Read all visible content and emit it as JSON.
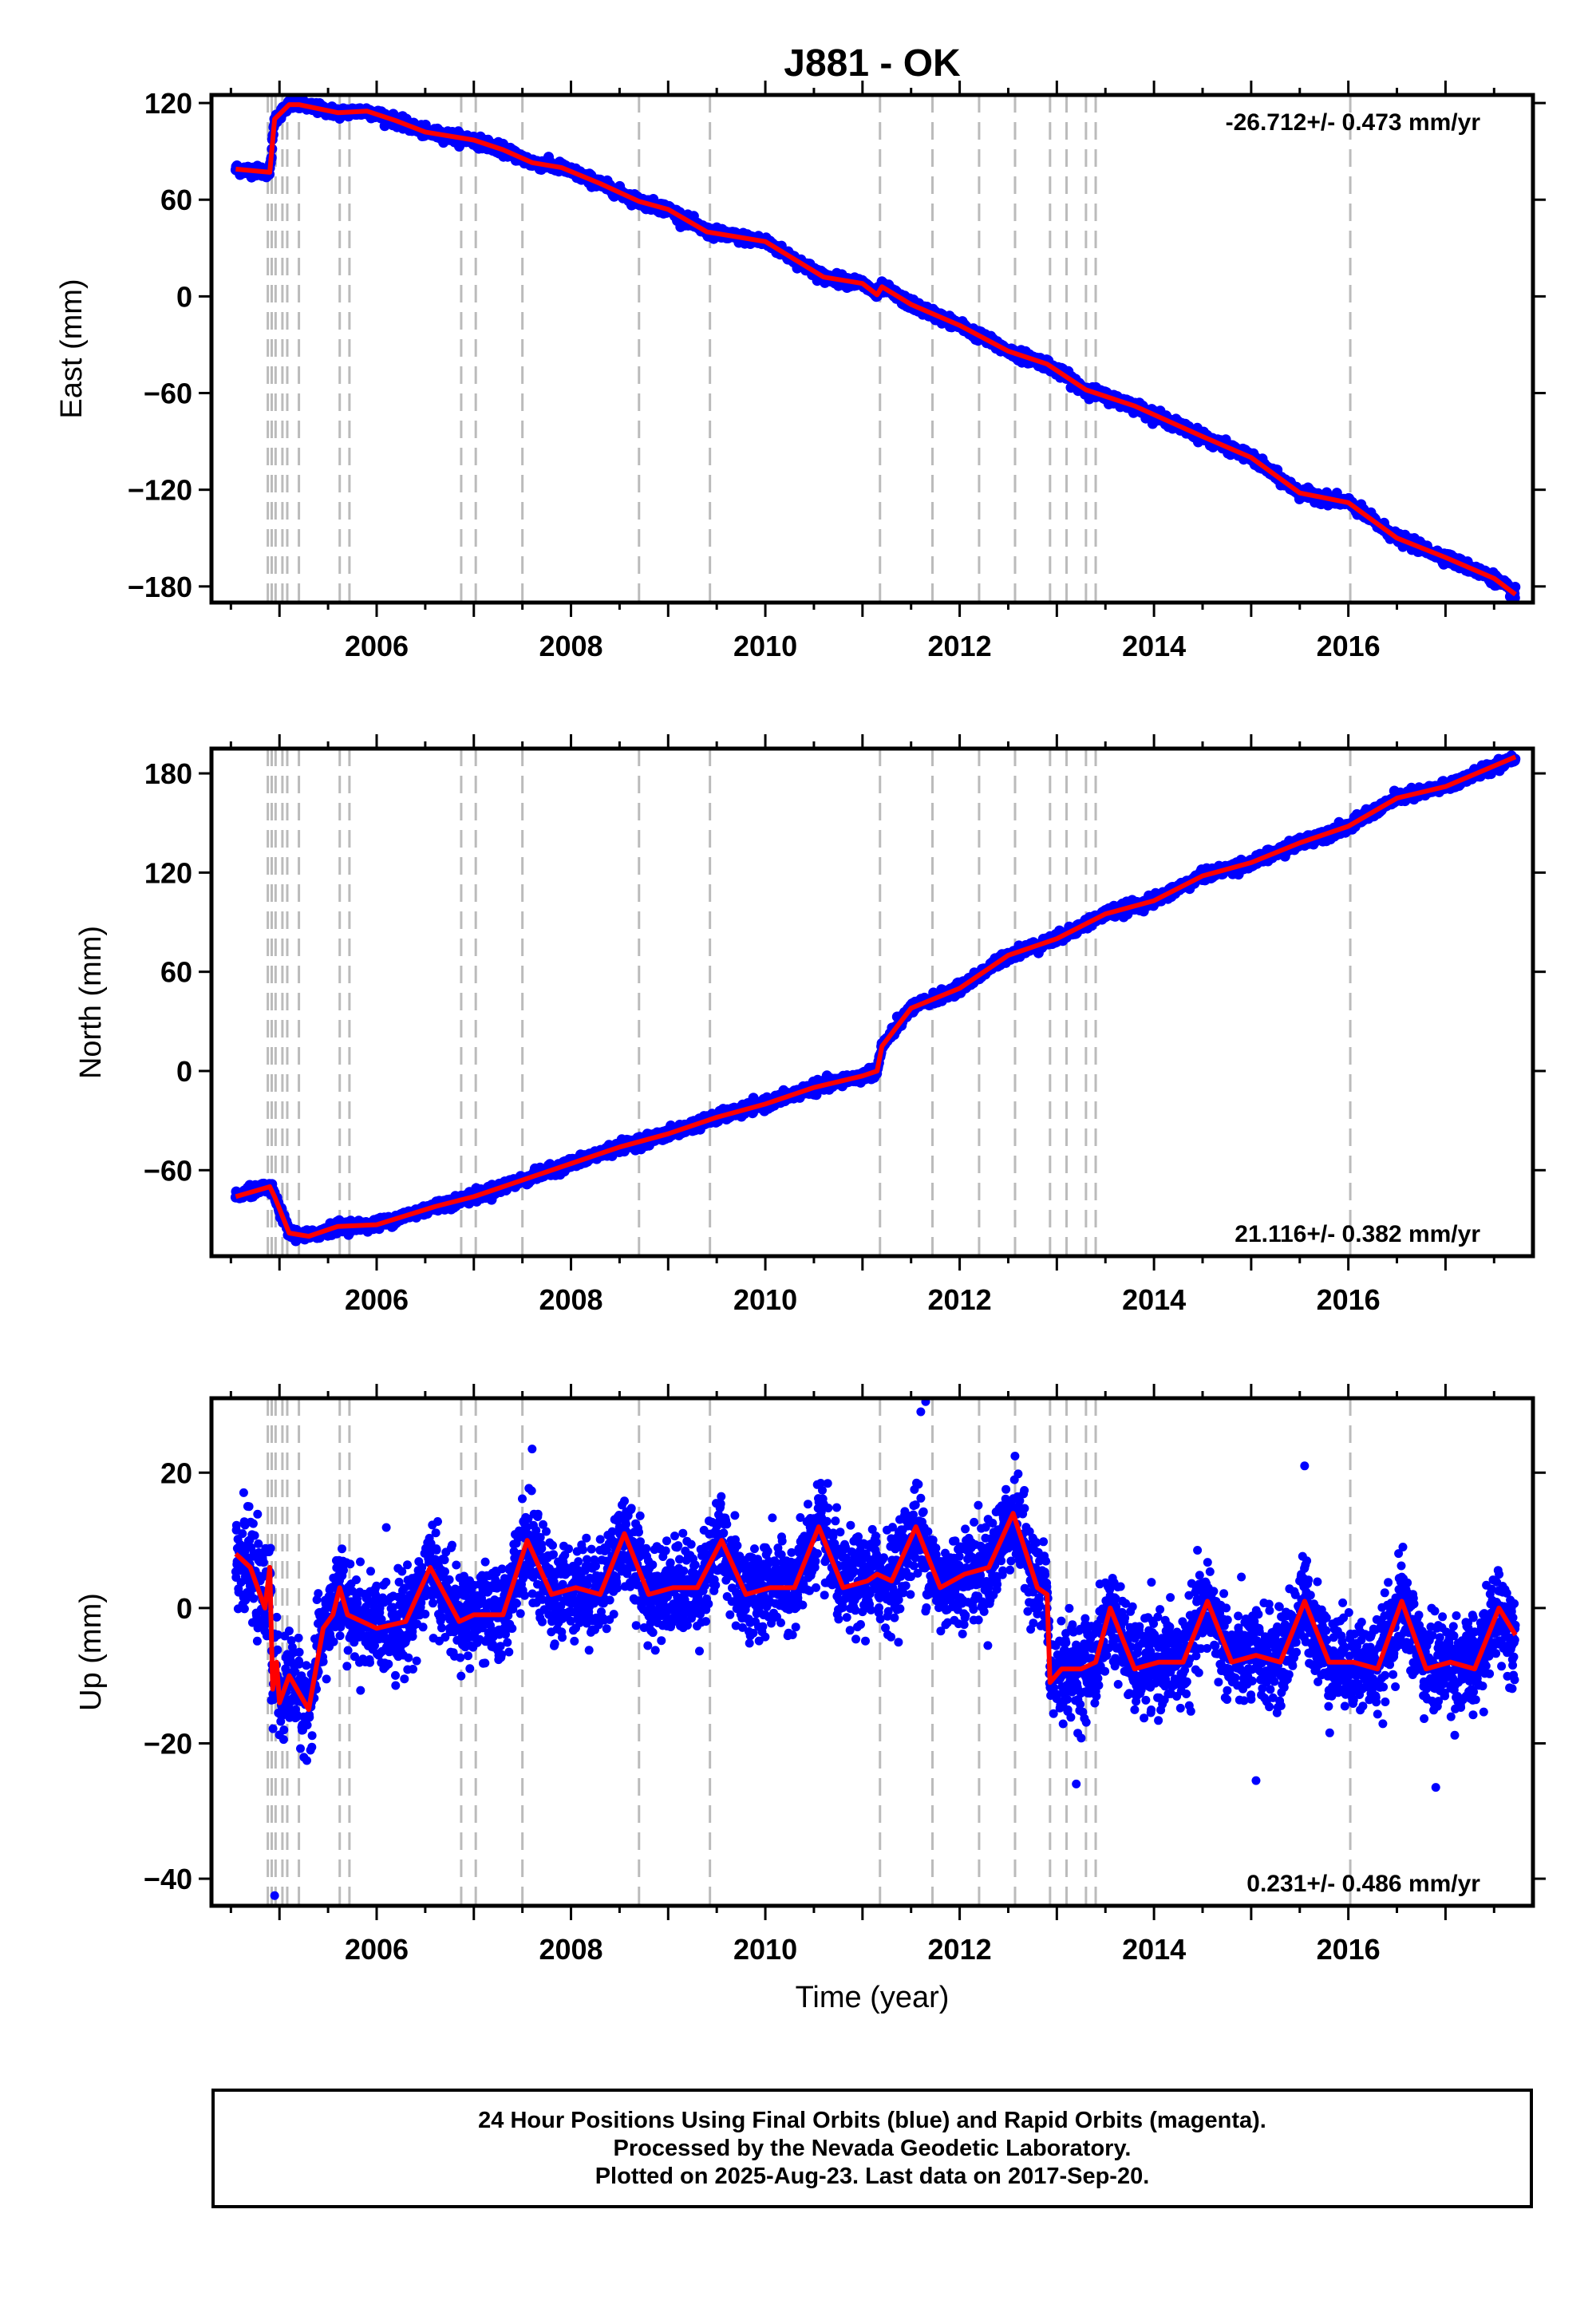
{
  "chart_data": {
    "type": "scatter",
    "title": "J881 - OK",
    "xlabel": "Time (year)",
    "xlim": [
      2004.3,
      2017.9
    ],
    "x_ticks": [
      2006,
      2008,
      2010,
      2012,
      2014,
      2016
    ],
    "x_tick_labels": [
      "2006",
      "2008",
      "2010",
      "2012",
      "2014",
      "2016"
    ],
    "x_range": [
      2004.55,
      2017.72
    ],
    "colors": {
      "final_orbits": "#0000ff",
      "model_fit": "#ff0000",
      "event_lines": "#bbbbbb"
    },
    "event_lines": [
      2004.88,
      2004.92,
      2004.96,
      2005.03,
      2005.08,
      2005.2,
      2005.62,
      2005.72,
      2006.87,
      2007.02,
      2007.5,
      2008.7,
      2009.43,
      2011.18,
      2011.72,
      2012.2,
      2012.57,
      2012.93,
      2013.1,
      2013.3,
      2013.4,
      2016.02
    ],
    "panels": [
      {
        "name": "east",
        "ylabel": "East (mm)",
        "ylim": [
          -190,
          125
        ],
        "y_ticks": [
          120,
          60,
          0,
          -60,
          -120,
          -180
        ],
        "y_tick_labels": [
          "120",
          "60",
          "0",
          "−60",
          "−120",
          "−180"
        ],
        "rate_label": "-26.712+/- 0.473 mm/yr",
        "noise_mm": 1.6,
        "outliers": [],
        "trend": {
          "x": [
            2004.55,
            2004.9,
            2004.95,
            2005.1,
            2005.2,
            2005.6,
            2005.9,
            2006.2,
            2006.5,
            2007.0,
            2007.3,
            2007.6,
            2007.9,
            2008.3,
            2008.7,
            2009.0,
            2009.4,
            2010.0,
            2010.6,
            2011.0,
            2011.15,
            2011.2,
            2011.5,
            2012.0,
            2012.5,
            2012.9,
            2013.3,
            2013.8,
            2014.5,
            2015.0,
            2015.5,
            2016.0,
            2016.5,
            2017.0,
            2017.5,
            2017.72
          ],
          "y": [
            79,
            77,
            110,
            119,
            119,
            114,
            115,
            109,
            102,
            97,
            91,
            83,
            80,
            70,
            59,
            54,
            40,
            34,
            12,
            8,
            1,
            6,
            -5,
            -18,
            -34,
            -42,
            -58,
            -68,
            -87,
            -100,
            -122,
            -128,
            -150,
            -162,
            -175,
            -185
          ]
        }
      },
      {
        "name": "north",
        "ylabel": "North (mm)",
        "ylim": [
          -112,
          195
        ],
        "y_ticks": [
          180,
          120,
          60,
          0,
          -60
        ],
        "y_tick_labels": [
          "180",
          "120",
          "60",
          "0",
          "−60"
        ],
        "rate_label": "21.116+/- 0.382 mm/yr",
        "noise_mm": 1.6,
        "outliers": [],
        "trend": {
          "x": [
            2004.55,
            2004.9,
            2004.95,
            2005.1,
            2005.3,
            2005.6,
            2006.0,
            2006.6,
            2007.0,
            2007.5,
            2008.0,
            2008.5,
            2009.0,
            2009.5,
            2010.0,
            2010.5,
            2011.0,
            2011.15,
            2011.2,
            2011.5,
            2012.0,
            2012.5,
            2013.0,
            2013.5,
            2014.0,
            2014.5,
            2015.0,
            2015.5,
            2016.0,
            2016.5,
            2017.0,
            2017.72
          ],
          "y": [
            -76,
            -70,
            -76,
            -98,
            -100,
            -94,
            -93,
            -82,
            -76,
            -66,
            -56,
            -46,
            -38,
            -28,
            -20,
            -10,
            -3,
            0,
            15,
            38,
            50,
            70,
            80,
            95,
            103,
            118,
            126,
            138,
            148,
            165,
            172,
            190
          ]
        }
      },
      {
        "name": "up",
        "ylabel": "Up (mm)",
        "ylim": [
          -44,
          31
        ],
        "y_ticks": [
          20,
          0,
          -20,
          -40
        ],
        "y_tick_labels": [
          "20",
          "0",
          "−20",
          "−40"
        ],
        "rate_label": "0.231+/- 0.486 mm/yr",
        "noise_mm": 3.4,
        "outliers": [
          [
            2004.95,
            -42.5
          ],
          [
            2011.65,
            30.5
          ],
          [
            2011.6,
            29
          ],
          [
            2015.55,
            21
          ],
          [
            2007.6,
            23.5
          ],
          [
            2013.2,
            -26
          ],
          [
            2016.9,
            -26.5
          ],
          [
            2015.05,
            -25.5
          ]
        ],
        "trend": {
          "x": [
            2004.55,
            2004.7,
            2004.85,
            2004.9,
            2004.93,
            2004.97,
            2005.0,
            2005.1,
            2005.3,
            2005.45,
            2005.55,
            2005.62,
            2005.7,
            2006.0,
            2006.3,
            2006.55,
            2006.85,
            2007.0,
            2007.3,
            2007.55,
            2007.8,
            2008.05,
            2008.3,
            2008.55,
            2008.8,
            2009.05,
            2009.3,
            2009.55,
            2009.8,
            2010.05,
            2010.3,
            2010.55,
            2010.8,
            2011.05,
            2011.15,
            2011.3,
            2011.55,
            2011.8,
            2012.05,
            2012.3,
            2012.55,
            2012.8,
            2012.9,
            2012.93,
            2013.05,
            2013.25,
            2013.4,
            2013.55,
            2013.8,
            2014.05,
            2014.3,
            2014.55,
            2014.8,
            2015.05,
            2015.3,
            2015.55,
            2015.8,
            2016.05,
            2016.3,
            2016.55,
            2016.8,
            2017.05,
            2017.3,
            2017.55,
            2017.72
          ],
          "y": [
            8,
            6,
            0,
            6,
            -12,
            -8,
            -14,
            -10,
            -15,
            -3,
            -1,
            3,
            -1,
            -3,
            -2,
            6,
            -2,
            -1,
            -1,
            10,
            2,
            3,
            2,
            11,
            2,
            3,
            3,
            10,
            2,
            3,
            3,
            12,
            3,
            4,
            5,
            4,
            12,
            3,
            5,
            6,
            14,
            3,
            2,
            -11,
            -9,
            -9,
            -8,
            0,
            -9,
            -8,
            -8,
            1,
            -8,
            -7,
            -8,
            1,
            -8,
            -8,
            -9,
            1,
            -9,
            -8,
            -9,
            0,
            -4
          ]
        }
      }
    ]
  },
  "footer": {
    "line1": "24 Hour Positions Using Final Orbits (blue) and Rapid Orbits (magenta).",
    "line2": "Processed by the Nevada Geodetic Laboratory.",
    "line3": "Plotted on 2025-Aug-23. Last data on 2017-Sep-20."
  }
}
